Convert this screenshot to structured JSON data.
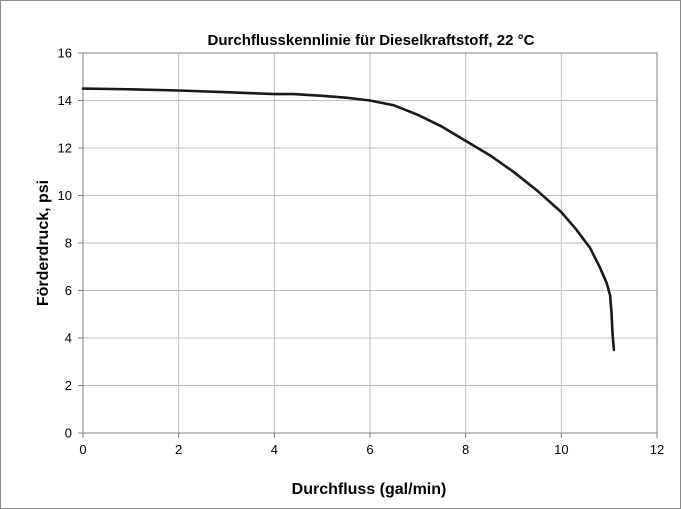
{
  "chart_data": {
    "type": "line",
    "title": "Durchflusskennlinie für Dieselkraftstoff, 22 °C",
    "xlabel": "Durchfluss (gal/min)",
    "ylabel": "Förderdruck, psi",
    "xlim": [
      0,
      12
    ],
    "ylim": [
      0,
      16
    ],
    "x_ticks": [
      "0",
      "2",
      "4",
      "6",
      "8",
      "10",
      "12"
    ],
    "y_ticks": [
      "0",
      "2",
      "4",
      "6",
      "8",
      "10",
      "12",
      "14",
      "16"
    ],
    "grid": true,
    "legend": "none",
    "line_color": "#1a1a1a",
    "series": [
      {
        "x": [
          0,
          1,
          2,
          3,
          4,
          4.4,
          5,
          5.5,
          6,
          6.5,
          7,
          7.5,
          8,
          8.5,
          9,
          9.5,
          10,
          10.3,
          10.6,
          10.8,
          10.95,
          11.02,
          11.05,
          11.07,
          11.1
        ],
        "values": [
          14.5,
          14.47,
          14.42,
          14.35,
          14.27,
          14.27,
          14.2,
          14.12,
          14.0,
          13.8,
          13.4,
          12.9,
          12.3,
          11.7,
          11.0,
          10.2,
          9.3,
          8.6,
          7.8,
          7.0,
          6.3,
          5.8,
          5.0,
          4.2,
          3.5
        ]
      }
    ]
  }
}
